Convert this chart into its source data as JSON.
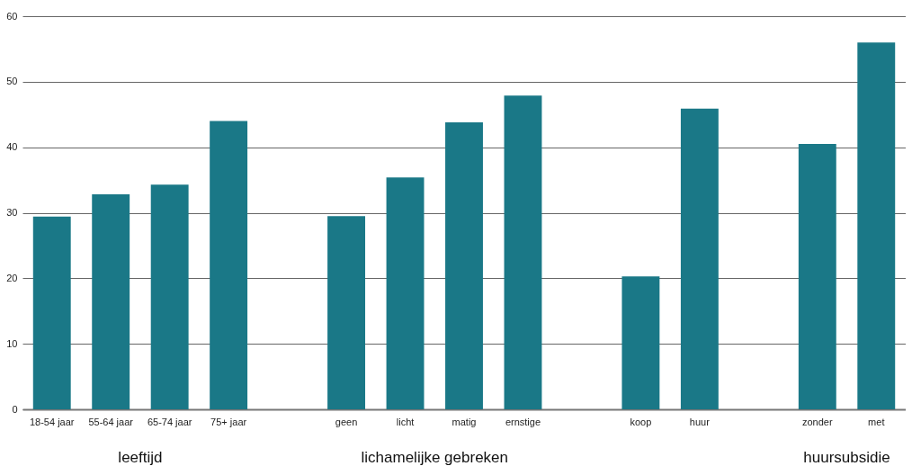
{
  "chart_data": {
    "type": "bar",
    "categories": [
      "18-54 jaar",
      "55-64 jaar",
      "65-74 jaar",
      "75+ jaar",
      null,
      "geen",
      "licht",
      "matig",
      "ernstige",
      null,
      "koop",
      "huur",
      null,
      "zonder",
      "met"
    ],
    "values": [
      29.4,
      32.8,
      34.3,
      44.0,
      null,
      29.5,
      35.4,
      43.8,
      47.9,
      null,
      20.3,
      45.9,
      null,
      40.5,
      56.0
    ],
    "color": "#1a7887",
    "ylim": [
      0,
      60
    ],
    "yticks": [
      0,
      10,
      20,
      30,
      40,
      50,
      60
    ],
    "grid": "y",
    "annotations": [
      "leeftijd",
      "lichamelijke gebreken",
      "huursubsidie"
    ]
  }
}
